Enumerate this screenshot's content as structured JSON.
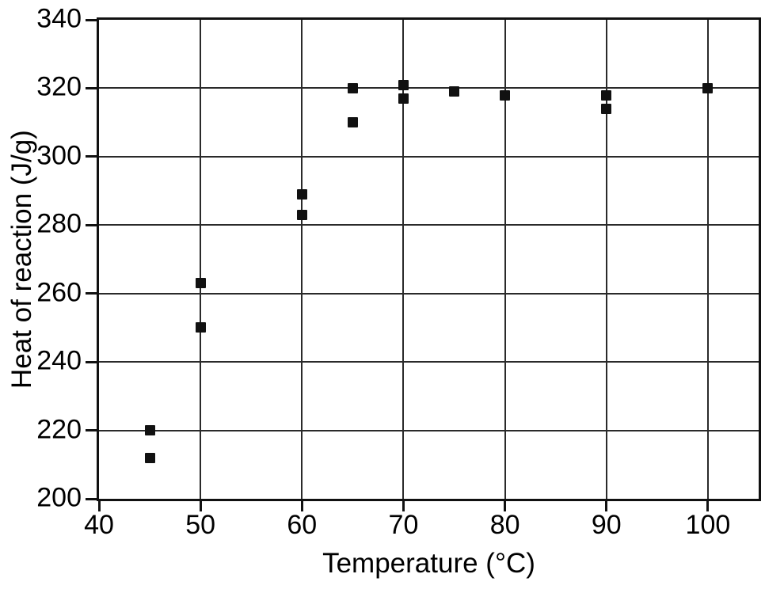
{
  "chart_data": {
    "type": "scatter",
    "title": "",
    "xlabel": "Temperature (°C)",
    "ylabel": "Heat of reaction (J/g)",
    "xlim": [
      40,
      105
    ],
    "ylim": [
      200,
      340
    ],
    "x_ticks": [
      40,
      50,
      60,
      70,
      80,
      90,
      100
    ],
    "y_ticks": [
      200,
      220,
      240,
      260,
      280,
      300,
      320,
      340
    ],
    "grid": true,
    "legend": "none",
    "marker": "filled-square",
    "points": [
      {
        "x": 45,
        "y": 220
      },
      {
        "x": 45,
        "y": 212
      },
      {
        "x": 50,
        "y": 263
      },
      {
        "x": 50,
        "y": 250
      },
      {
        "x": 60,
        "y": 289
      },
      {
        "x": 60,
        "y": 283
      },
      {
        "x": 65,
        "y": 320
      },
      {
        "x": 65,
        "y": 310
      },
      {
        "x": 70,
        "y": 321
      },
      {
        "x": 70,
        "y": 317
      },
      {
        "x": 75,
        "y": 319
      },
      {
        "x": 80,
        "y": 318
      },
      {
        "x": 90,
        "y": 318
      },
      {
        "x": 90,
        "y": 314
      },
      {
        "x": 100,
        "y": 320
      }
    ]
  },
  "colors": {
    "background": "#ffffff",
    "axis": "#111111",
    "grid": "#2a2a2a",
    "marker": "#111111",
    "text": "#000000"
  }
}
